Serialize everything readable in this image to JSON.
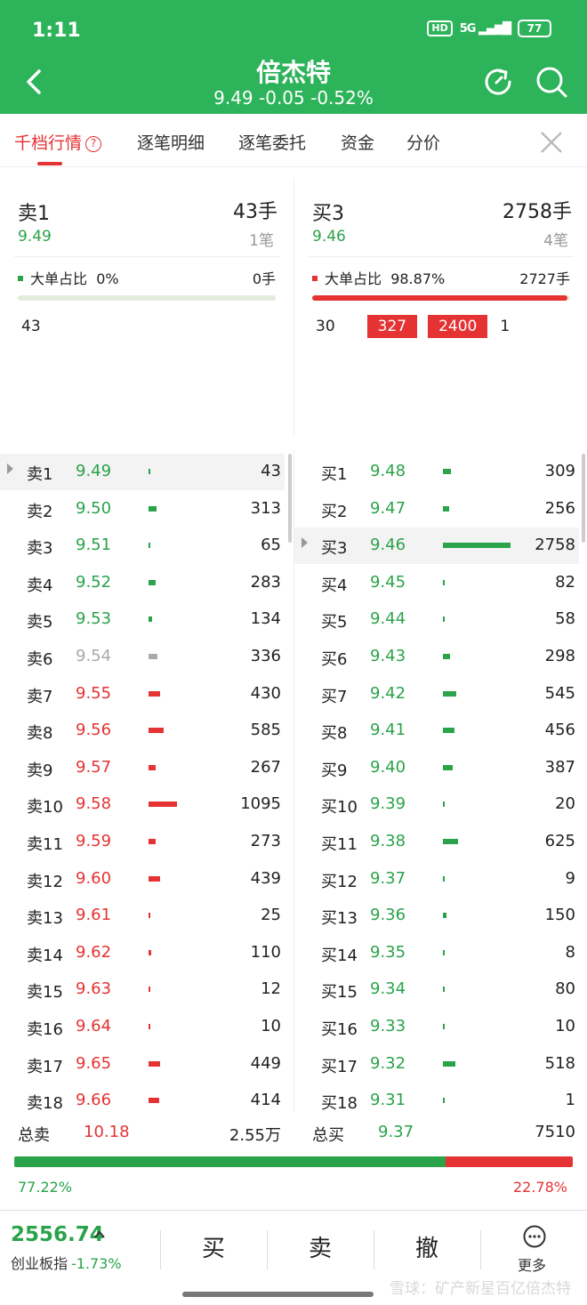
{
  "status": {
    "time": "1:11",
    "hd": "HD",
    "signal": "5G",
    "battery": "77"
  },
  "stock": {
    "name": "倍杰特",
    "price": "9.49",
    "change": "-0.05",
    "pct": "-0.52%"
  },
  "tabs": [
    "千档行情",
    "逐笔明细",
    "逐笔委托",
    "资金",
    "分价"
  ],
  "colors": {
    "green": "#2aa34a",
    "red": "#e53333",
    "grey": "#aaaaaa",
    "header": "#2db35a"
  },
  "summary": {
    "sell": {
      "label": "卖1",
      "qty": "43手",
      "price": "9.49",
      "count": "1笔",
      "big_label": "大单占比",
      "big_pct": "0%",
      "big_qty": "0手",
      "big_fraction": 0.0,
      "chips": [
        "43"
      ]
    },
    "buy": {
      "label": "买3",
      "qty": "2758手",
      "price": "9.46",
      "count": "4笔",
      "big_label": "大单占比",
      "big_pct": "98.87%",
      "big_qty": "2727手",
      "big_fraction": 0.9887,
      "chips": [
        "30",
        "327",
        "2400",
        "1"
      ]
    }
  },
  "sell_book": [
    {
      "level": "卖1",
      "price": "9.49",
      "vol": "43",
      "color": "green"
    },
    {
      "level": "卖2",
      "price": "9.50",
      "vol": "313",
      "color": "green"
    },
    {
      "level": "卖3",
      "price": "9.51",
      "vol": "65",
      "color": "green"
    },
    {
      "level": "卖4",
      "price": "9.52",
      "vol": "283",
      "color": "green"
    },
    {
      "level": "卖5",
      "price": "9.53",
      "vol": "134",
      "color": "green"
    },
    {
      "level": "卖6",
      "price": "9.54",
      "vol": "336",
      "color": "grey"
    },
    {
      "level": "卖7",
      "price": "9.55",
      "vol": "430",
      "color": "red"
    },
    {
      "level": "卖8",
      "price": "9.56",
      "vol": "585",
      "color": "red"
    },
    {
      "level": "卖9",
      "price": "9.57",
      "vol": "267",
      "color": "red"
    },
    {
      "level": "卖10",
      "price": "9.58",
      "vol": "1095",
      "color": "red"
    },
    {
      "level": "卖11",
      "price": "9.59",
      "vol": "273",
      "color": "red"
    },
    {
      "level": "卖12",
      "price": "9.60",
      "vol": "439",
      "color": "red"
    },
    {
      "level": "卖13",
      "price": "9.61",
      "vol": "25",
      "color": "red"
    },
    {
      "level": "卖14",
      "price": "9.62",
      "vol": "110",
      "color": "red"
    },
    {
      "level": "卖15",
      "price": "9.63",
      "vol": "12",
      "color": "red"
    },
    {
      "level": "卖16",
      "price": "9.64",
      "vol": "10",
      "color": "red"
    },
    {
      "level": "卖17",
      "price": "9.65",
      "vol": "449",
      "color": "red"
    },
    {
      "level": "卖18",
      "price": "9.66",
      "vol": "414",
      "color": "red"
    }
  ],
  "buy_book": [
    {
      "level": "买1",
      "price": "9.48",
      "vol": "309",
      "color": "green"
    },
    {
      "level": "买2",
      "price": "9.47",
      "vol": "256",
      "color": "green"
    },
    {
      "level": "买3",
      "price": "9.46",
      "vol": "2758",
      "color": "green"
    },
    {
      "level": "买4",
      "price": "9.45",
      "vol": "82",
      "color": "green"
    },
    {
      "level": "买5",
      "price": "9.44",
      "vol": "58",
      "color": "green"
    },
    {
      "level": "买6",
      "price": "9.43",
      "vol": "298",
      "color": "green"
    },
    {
      "level": "买7",
      "price": "9.42",
      "vol": "545",
      "color": "green"
    },
    {
      "level": "买8",
      "price": "9.41",
      "vol": "456",
      "color": "green"
    },
    {
      "level": "买9",
      "price": "9.40",
      "vol": "387",
      "color": "green"
    },
    {
      "level": "买10",
      "price": "9.39",
      "vol": "20",
      "color": "green"
    },
    {
      "level": "买11",
      "price": "9.38",
      "vol": "625",
      "color": "green"
    },
    {
      "level": "买12",
      "price": "9.37",
      "vol": "9",
      "color": "green"
    },
    {
      "level": "买13",
      "price": "9.36",
      "vol": "150",
      "color": "green"
    },
    {
      "level": "买14",
      "price": "9.35",
      "vol": "8",
      "color": "green"
    },
    {
      "level": "买15",
      "price": "9.34",
      "vol": "80",
      "color": "green"
    },
    {
      "level": "买16",
      "price": "9.33",
      "vol": "10",
      "color": "green"
    },
    {
      "level": "买17",
      "price": "9.32",
      "vol": "518",
      "color": "green"
    },
    {
      "level": "买18",
      "price": "9.31",
      "vol": "1",
      "color": "green"
    }
  ],
  "totals": {
    "sell": {
      "label": "总卖",
      "price": "10.18",
      "amount": "2.55万"
    },
    "buy": {
      "label": "总买",
      "price": "9.37",
      "amount": "7510"
    },
    "green_pct": "77.22%",
    "red_pct": "22.78%",
    "green_fraction": 0.7722
  },
  "footer": {
    "index_value": "2556.74",
    "index_name": "创业板指",
    "index_change": "-1.73%",
    "buy": "买",
    "sell": "卖",
    "cancel": "撤",
    "more": "更多"
  },
  "watermark": "雪球：矿产新星百亿倍杰特"
}
